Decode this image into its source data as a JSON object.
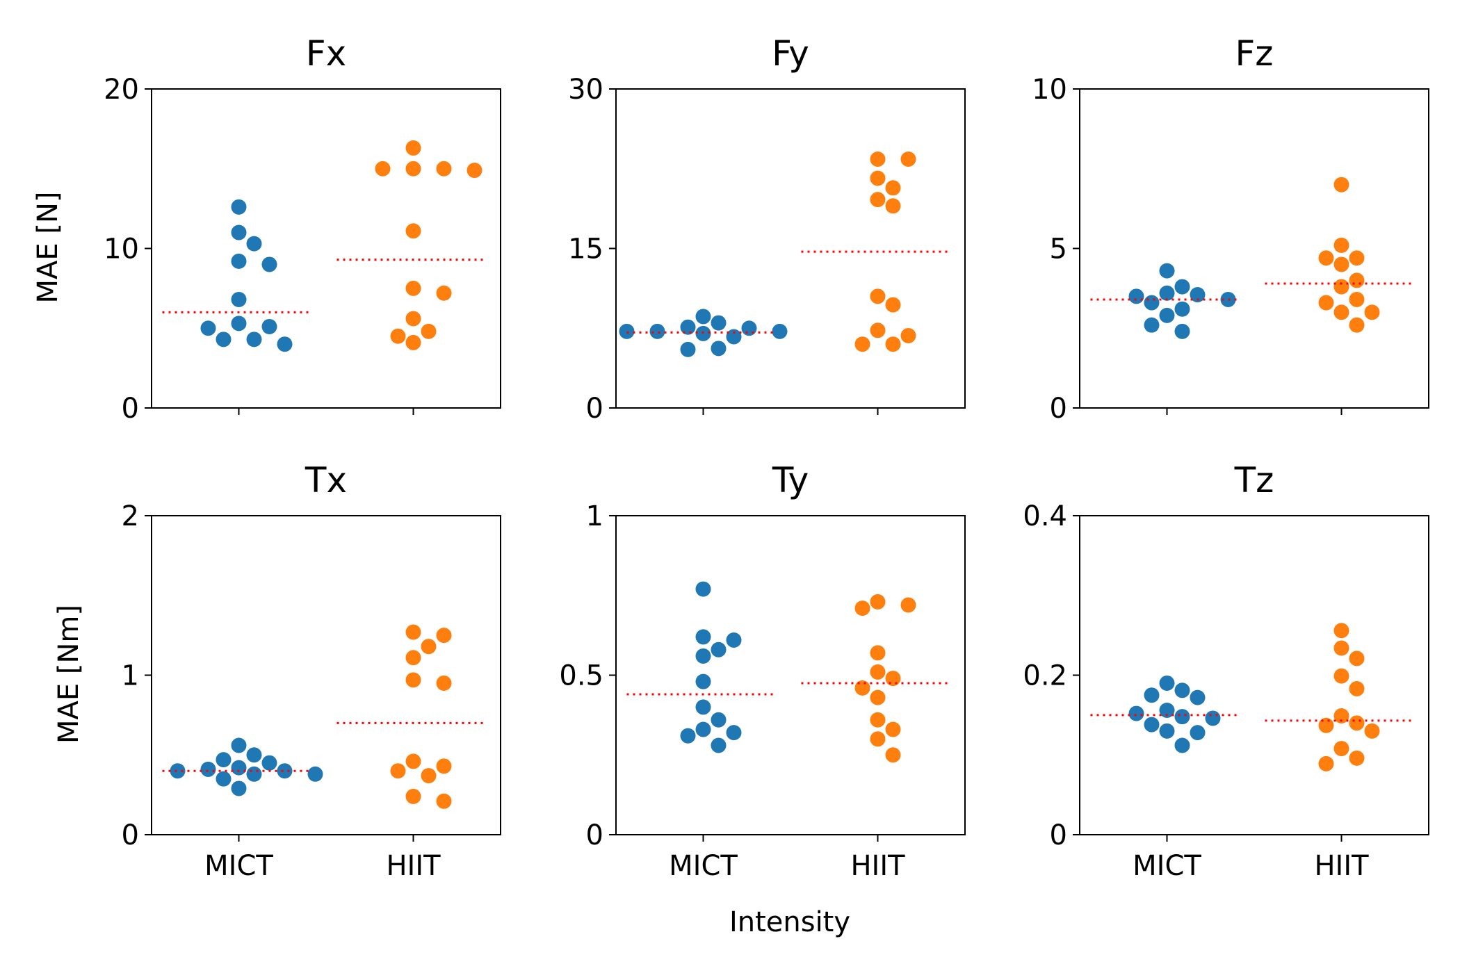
{
  "figure": {
    "xlabel": "Intensity",
    "ylabel_top": "MAE [N]",
    "ylabel_bottom": "MAE [Nm]",
    "colors": {
      "MICT": "#1f77b4",
      "HIIT": "#ff7f0e",
      "mean_line": "#ff0000"
    }
  },
  "chart_data": [
    {
      "type": "scatter",
      "title": "Fx",
      "ylim": [
        0,
        20
      ],
      "yticks": [
        "0",
        "10",
        "20"
      ],
      "categories": [
        "MICT",
        "HIIT"
      ],
      "series": [
        {
          "name": "MICT",
          "mean": 6.0,
          "values": [
            12.6,
            11.0,
            10.3,
            9.2,
            9.0,
            6.8,
            5.3,
            5.1,
            5.0,
            4.3,
            4.3,
            4.0
          ]
        },
        {
          "name": "HIIT",
          "mean": 9.3,
          "values": [
            16.3,
            15.0,
            14.9,
            15.0,
            15.0,
            11.1,
            7.5,
            7.2,
            5.6,
            4.8,
            4.5,
            4.1
          ]
        }
      ]
    },
    {
      "type": "scatter",
      "title": "Fy",
      "ylim": [
        0,
        30
      ],
      "yticks": [
        "0",
        "15",
        "30"
      ],
      "categories": [
        "MICT",
        "HIIT"
      ],
      "series": [
        {
          "name": "MICT",
          "mean": 7.1,
          "values": [
            8.6,
            8.0,
            7.6,
            7.5,
            7.2,
            7.2,
            7.2,
            7.0,
            6.7,
            5.6,
            5.5
          ]
        },
        {
          "name": "HIIT",
          "mean": 14.7,
          "values": [
            23.4,
            23.4,
            21.6,
            20.7,
            19.6,
            19.0,
            10.5,
            9.7,
            7.3,
            6.8,
            6.0,
            6.0
          ]
        }
      ]
    },
    {
      "type": "scatter",
      "title": "Fz",
      "ylim": [
        0,
        10
      ],
      "yticks": [
        "0",
        "5",
        "10"
      ],
      "categories": [
        "MICT",
        "HIIT"
      ],
      "series": [
        {
          "name": "MICT",
          "mean": 3.4,
          "values": [
            4.3,
            3.8,
            3.6,
            3.55,
            3.5,
            3.4,
            3.3,
            3.1,
            2.9,
            2.6,
            2.4
          ]
        },
        {
          "name": "HIIT",
          "mean": 3.9,
          "values": [
            7.0,
            5.1,
            4.7,
            4.7,
            4.5,
            4.0,
            3.8,
            3.4,
            3.3,
            3.0,
            3.0,
            2.6
          ]
        }
      ]
    },
    {
      "type": "scatter",
      "title": "Tx",
      "ylim": [
        0,
        2
      ],
      "yticks": [
        "0",
        "1",
        "2"
      ],
      "categories": [
        "MICT",
        "HIIT"
      ],
      "series": [
        {
          "name": "MICT",
          "mean": 0.4,
          "values": [
            0.56,
            0.5,
            0.47,
            0.45,
            0.42,
            0.41,
            0.4,
            0.4,
            0.38,
            0.38,
            0.35,
            0.29
          ]
        },
        {
          "name": "HIIT",
          "mean": 0.7,
          "values": [
            1.27,
            1.25,
            1.18,
            1.11,
            0.97,
            0.95,
            0.46,
            0.43,
            0.4,
            0.37,
            0.24,
            0.21
          ]
        }
      ]
    },
    {
      "type": "scatter",
      "title": "Ty",
      "ylim": [
        0,
        1
      ],
      "yticks": [
        "0",
        "0.5",
        "1"
      ],
      "categories": [
        "MICT",
        "HIIT"
      ],
      "series": [
        {
          "name": "MICT",
          "mean": 0.44,
          "values": [
            0.77,
            0.62,
            0.61,
            0.58,
            0.56,
            0.48,
            0.4,
            0.36,
            0.33,
            0.32,
            0.31,
            0.28
          ]
        },
        {
          "name": "HIIT",
          "mean": 0.475,
          "values": [
            0.73,
            0.72,
            0.71,
            0.57,
            0.51,
            0.49,
            0.46,
            0.43,
            0.36,
            0.33,
            0.3,
            0.25
          ]
        }
      ]
    },
    {
      "type": "scatter",
      "title": "Tz",
      "ylim": [
        0,
        0.4
      ],
      "yticks": [
        "0",
        "0.2",
        "0.4"
      ],
      "categories": [
        "MICT",
        "HIIT"
      ],
      "series": [
        {
          "name": "MICT",
          "mean": 0.15,
          "values": [
            0.19,
            0.181,
            0.175,
            0.172,
            0.156,
            0.152,
            0.148,
            0.146,
            0.138,
            0.13,
            0.128,
            0.112
          ]
        },
        {
          "name": "HIIT",
          "mean": 0.143,
          "values": [
            0.256,
            0.234,
            0.221,
            0.199,
            0.183,
            0.149,
            0.14,
            0.137,
            0.13,
            0.108,
            0.096,
            0.089
          ]
        }
      ]
    }
  ]
}
